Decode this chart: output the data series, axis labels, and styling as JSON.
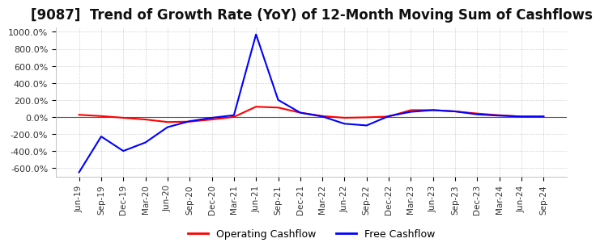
{
  "title": "[9087]  Trend of Growth Rate (YoY) of 12-Month Moving Sum of Cashflows",
  "title_fontsize": 12,
  "ylim": [
    -700,
    1050
  ],
  "yticks": [
    -600,
    -400,
    -200,
    0,
    200,
    400,
    600,
    800,
    1000
  ],
  "yticklabels": [
    "-600.0%",
    "-400.0%",
    "-200.0%",
    "0.0%",
    "200.0%",
    "400.0%",
    "600.0%",
    "800.0%",
    "1000.0%"
  ],
  "background_color": "#ffffff",
  "grid_color": "#b0b0b0",
  "legend_labels": [
    "Operating Cashflow",
    "Free Cashflow"
  ],
  "legend_colors": [
    "#ff0000",
    "#0000ff"
  ],
  "x_labels": [
    "Jun-19",
    "Sep-19",
    "Dec-19",
    "Mar-20",
    "Jun-20",
    "Sep-20",
    "Dec-20",
    "Mar-21",
    "Jun-21",
    "Sep-21",
    "Dec-21",
    "Mar-22",
    "Jun-22",
    "Sep-22",
    "Dec-22",
    "Mar-23",
    "Jun-23",
    "Sep-23",
    "Dec-23",
    "Mar-24",
    "Jun-24",
    "Sep-24"
  ],
  "operating_cashflow": [
    25,
    10,
    -10,
    -30,
    -60,
    -55,
    -30,
    0,
    120,
    110,
    50,
    10,
    -10,
    -5,
    5,
    80,
    80,
    65,
    40,
    20,
    5,
    5
  ],
  "free_cashflow": [
    -650,
    -230,
    -400,
    -300,
    -120,
    -50,
    -10,
    20,
    970,
    200,
    50,
    5,
    -80,
    -100,
    10,
    60,
    80,
    65,
    30,
    15,
    5,
    5
  ]
}
